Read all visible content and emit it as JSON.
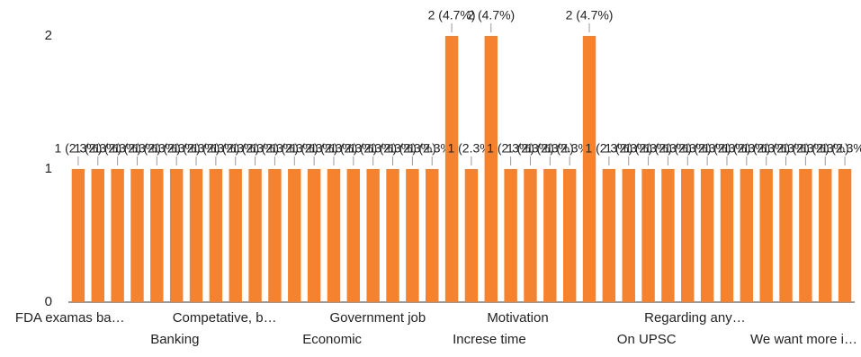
{
  "chart_data": {
    "type": "bar",
    "categories": [
      "FDA examas ba…",
      null,
      null,
      null,
      "Banking",
      null,
      null,
      null,
      "Competative, b…",
      null,
      null,
      null,
      "Economic",
      null,
      null,
      null,
      "Government job",
      null,
      null,
      null,
      "Increse time",
      null,
      null,
      null,
      "Motivation",
      null,
      null,
      null,
      "On UPSC",
      null,
      null,
      null,
      "Regarding any…",
      null,
      null,
      null,
      "We want more i…",
      null,
      null,
      null
    ],
    "values": [
      1,
      1,
      1,
      1,
      1,
      1,
      1,
      1,
      1,
      1,
      1,
      1,
      1,
      1,
      1,
      1,
      1,
      1,
      1,
      2,
      1,
      2,
      1,
      1,
      1,
      1,
      2,
      1,
      1,
      1,
      1,
      1,
      1,
      1,
      1,
      1,
      1,
      1,
      1,
      1
    ],
    "value_labels": [
      "1 (2.3%)",
      "1 (2.3%)",
      "1 (2.3%)",
      "1 (2.3%)",
      "1 (2.3%)",
      "1 (2.3%)",
      "1 (2.3%)",
      "1 (2.3%)",
      "1 (2.3%)",
      "1 (2.3%)",
      "1 (2.3%)",
      "1 (2.3%)",
      "1 (2.3%)",
      "1 (2.3%)",
      "1 (2.3%)",
      "1 (2.3%)",
      "1 (2.3%)",
      "1 (2.3%)",
      "1 (2.3%)",
      "2 (4.7%)",
      "1 (2.3%)",
      "2 (4.7%)",
      "1 (2.3%)",
      "1 (2.3%)",
      "1 (2.3%)",
      "1 (2.3%)",
      "2 (4.7%)",
      "1 (2.3%)",
      "1 (2.3%)",
      "1 (2.3%)",
      "1 (2.3%)",
      "1 (2.3%)",
      "1 (2.3%)",
      "1 (2.3%)",
      "1 (2.3%)",
      "1 (2.3%)",
      "1 (2.3%)",
      "1 (2.3%)",
      "1 (2.3%)",
      "1 (2.3%)"
    ],
    "color": "#f4822f",
    "ylim": [
      0,
      2
    ],
    "yticks": [
      0,
      1,
      2
    ],
    "grid": false
  }
}
